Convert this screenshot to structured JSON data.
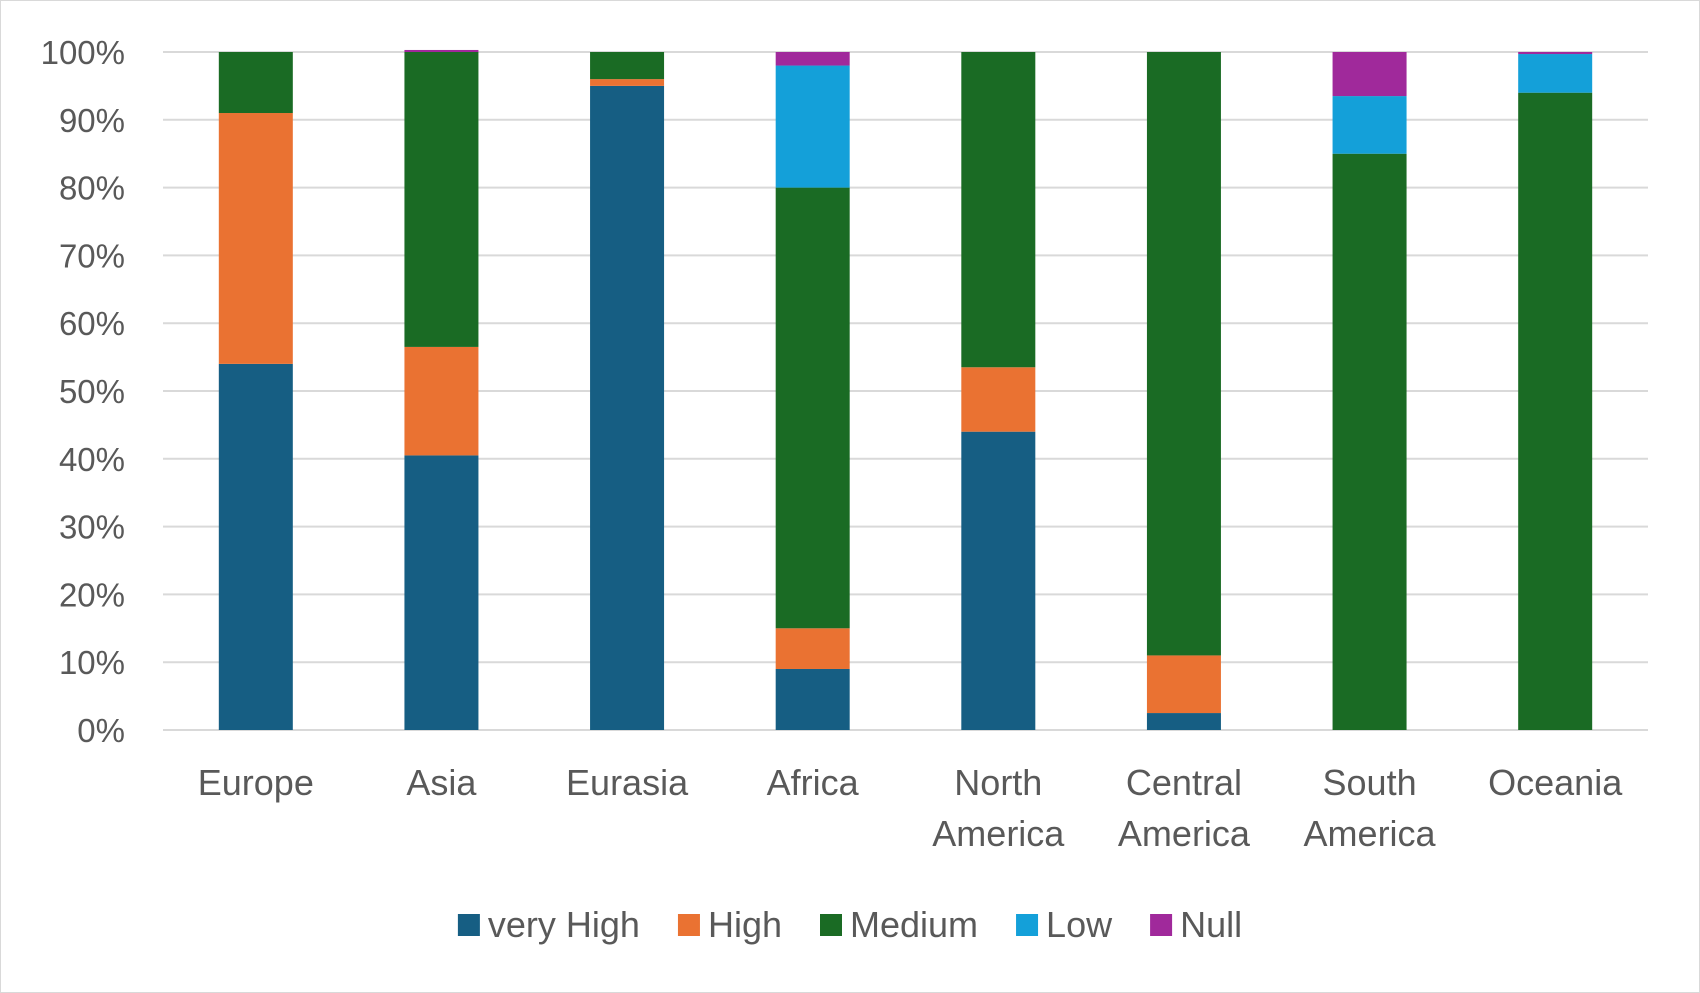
{
  "chart_data": {
    "type": "bar",
    "stacked": "percent",
    "title": "",
    "xlabel": "",
    "ylabel": "",
    "ylim": [
      0,
      100
    ],
    "y_ticks": [
      "0%",
      "10%",
      "20%",
      "30%",
      "40%",
      "50%",
      "60%",
      "70%",
      "80%",
      "90%",
      "100%"
    ],
    "grid": true,
    "legend_position": "bottom",
    "categories": [
      [
        "Europe"
      ],
      [
        "Asia"
      ],
      [
        "Eurasia"
      ],
      [
        "Africa"
      ],
      [
        "North",
        "America"
      ],
      [
        "Central",
        "America"
      ],
      [
        "South",
        "America"
      ],
      [
        "Oceania"
      ]
    ],
    "series": [
      {
        "name": "very High",
        "color": "#165e83",
        "values": [
          54,
          40.5,
          95,
          9,
          44,
          2.5,
          0,
          0
        ]
      },
      {
        "name": "High",
        "color": "#ea7232",
        "values": [
          37,
          16,
          1,
          6,
          9.5,
          8.5,
          0,
          0
        ]
      },
      {
        "name": "Medium",
        "color": "#1a6b24",
        "values": [
          9,
          43.5,
          4,
          65,
          46.5,
          89,
          85,
          94
        ]
      },
      {
        "name": "Low",
        "color": "#14a0d9",
        "values": [
          0,
          0,
          0,
          18,
          0,
          0,
          8.5,
          5.7
        ]
      },
      {
        "name": "Null",
        "color": "#a0299b",
        "values": [
          0,
          0.3,
          0,
          2,
          0,
          0,
          6.5,
          0.3
        ]
      }
    ]
  }
}
